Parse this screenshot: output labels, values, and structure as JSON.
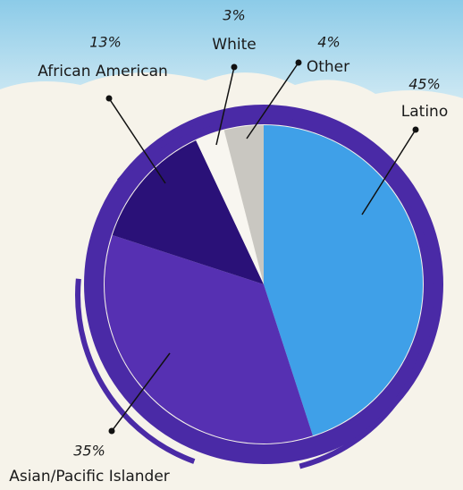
{
  "chart_data": {
    "type": "pie",
    "categories": [
      "Latino",
      "Asian/Pacific Islander",
      "African American",
      "White",
      "Other"
    ],
    "values": [
      45,
      35,
      13,
      3,
      4
    ],
    "value_labels": [
      "45%",
      "35%",
      "13%",
      "3%",
      "4%"
    ],
    "colors": [
      "#3fa0e8",
      "#5630b2",
      "#2a1178",
      "#f8f6f0",
      "#c9c7c1"
    ]
  }
}
